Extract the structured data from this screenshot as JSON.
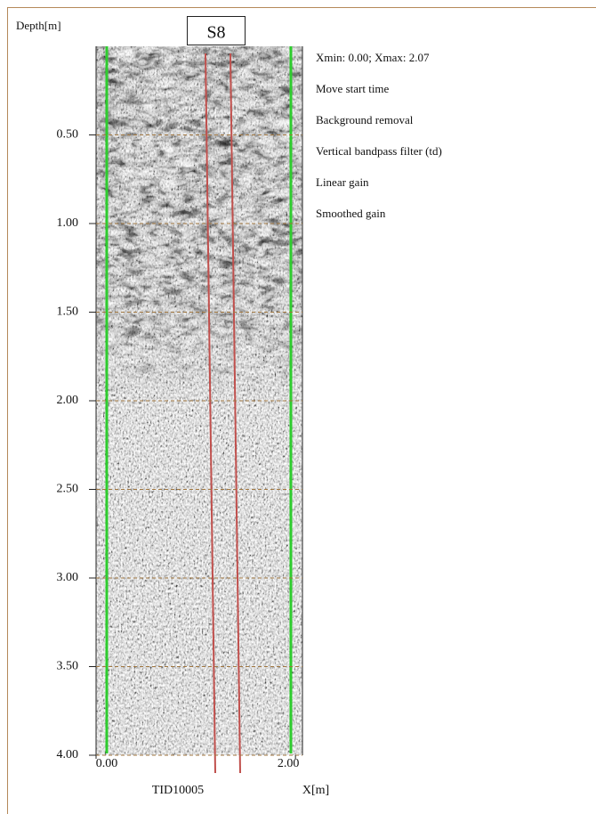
{
  "header": {
    "label": "S8"
  },
  "chart_data": {
    "type": "radargram",
    "ylabel": "Depth[m]",
    "xlabel": "X[m]",
    "profile": "TID10005",
    "info": "Xmin:  0.00;    Xmax:  2.07",
    "processing": [
      "Move start time",
      "Background removal",
      "Vertical bandpass filter (td)",
      "Linear gain",
      "Smoothed gain"
    ],
    "ylim": [
      0,
      4
    ],
    "xlim": [
      0,
      2.07
    ],
    "yticks": [
      {
        "value": 0.5,
        "label": "0.50"
      },
      {
        "value": 1,
        "label": "1.00"
      },
      {
        "value": 1.5,
        "label": "1.50"
      },
      {
        "value": 2,
        "label": "2.00"
      },
      {
        "value": 2.5,
        "label": "2.50"
      },
      {
        "value": 3,
        "label": "3.00"
      },
      {
        "value": 3.5,
        "label": "3.50"
      },
      {
        "value": 4,
        "label": "4.00"
      }
    ],
    "xticks": [
      {
        "value": 0,
        "label": "0.00"
      },
      {
        "value": 2,
        "label": "2.00"
      }
    ],
    "grid": true,
    "grid_color": "#a0763f"
  }
}
